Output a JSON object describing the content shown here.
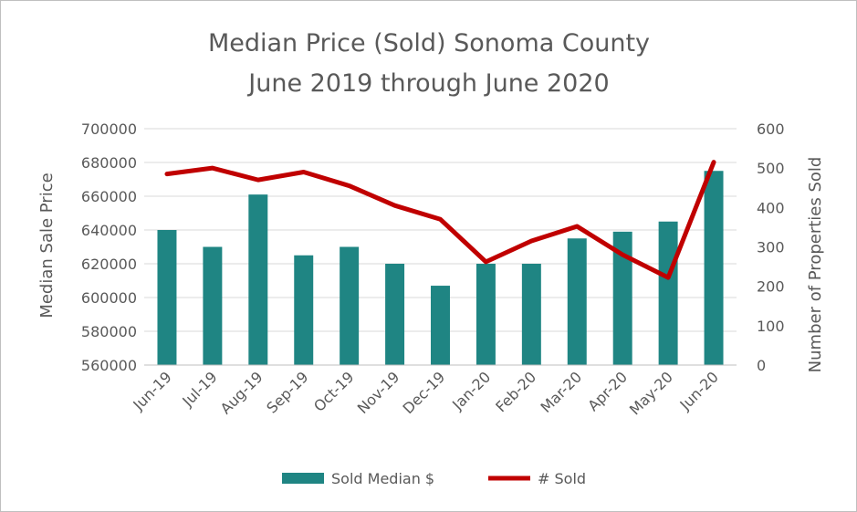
{
  "chart_data": {
    "type": "bar",
    "title": "Median Price (Sold) Sonoma County",
    "subtitle": "June 2019 through June 2020",
    "categories": [
      "Jun-19",
      "Jul-19",
      "Aug-19",
      "Sep-19",
      "Oct-19",
      "Nov-19",
      "Dec-19",
      "Jan-20",
      "Feb-20",
      "Mar-20",
      "Apr-20",
      "May-20",
      "Jun-20"
    ],
    "ylabel": "Median Sale Price",
    "y2label": "Number of Properties Sold",
    "ylim": [
      560000,
      700000
    ],
    "y2lim": [
      0,
      600
    ],
    "yticks": [
      "560000",
      "580000",
      "600000",
      "620000",
      "640000",
      "660000",
      "680000",
      "700000"
    ],
    "y2ticks": [
      "0",
      "100",
      "200",
      "300",
      "400",
      "500",
      "600"
    ],
    "grid": "horizontal",
    "legend_position": "bottom",
    "series": [
      {
        "name": "Sold Median $",
        "type": "bar",
        "axis": "left",
        "color": "#1f8583",
        "values": [
          640000,
          630000,
          661000,
          625000,
          630000,
          620000,
          607000,
          620000,
          620000,
          635000,
          639000,
          645000,
          675000
        ]
      },
      {
        "name": "# Sold",
        "type": "line",
        "axis": "right",
        "color": "#c00000",
        "values": [
          485,
          500,
          470,
          490,
          455,
          405,
          370,
          262,
          315,
          352,
          280,
          222,
          515
        ]
      }
    ]
  }
}
